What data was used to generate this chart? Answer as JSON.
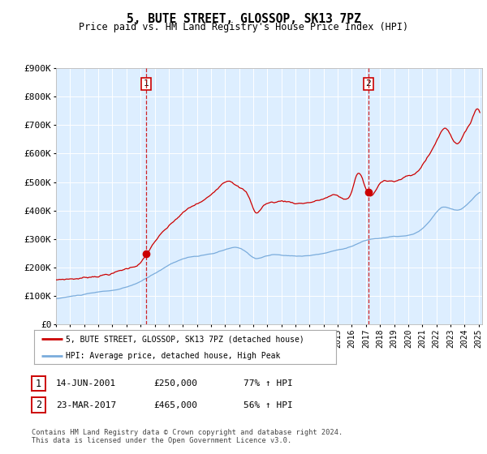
{
  "title": "5, BUTE STREET, GLOSSOP, SK13 7PZ",
  "subtitle": "Price paid vs. HM Land Registry's House Price Index (HPI)",
  "legend_line1": "5, BUTE STREET, GLOSSOP, SK13 7PZ (detached house)",
  "legend_line2": "HPI: Average price, detached house, High Peak",
  "marker1_date": "14-JUN-2001",
  "marker1_price": 250000,
  "marker1_label": "77% ↑ HPI",
  "marker1_num": "1",
  "marker2_date": "23-MAR-2017",
  "marker2_price": 465000,
  "marker2_label": "56% ↑ HPI",
  "marker2_num": "2",
  "footer": "Contains HM Land Registry data © Crown copyright and database right 2024.\nThis data is licensed under the Open Government Licence v3.0.",
  "red_color": "#cc0000",
  "blue_color": "#7aacdc",
  "bg_color": "#ddeeff",
  "marker_color": "#cc0000",
  "dashed_color": "#cc0000",
  "ylim": [
    0,
    900000
  ],
  "yticks": [
    0,
    100000,
    200000,
    300000,
    400000,
    500000,
    600000,
    700000,
    800000,
    900000
  ],
  "ytick_labels": [
    "£0",
    "£100K",
    "£200K",
    "£300K",
    "£400K",
    "£500K",
    "£600K",
    "£700K",
    "£800K",
    "£900K"
  ]
}
